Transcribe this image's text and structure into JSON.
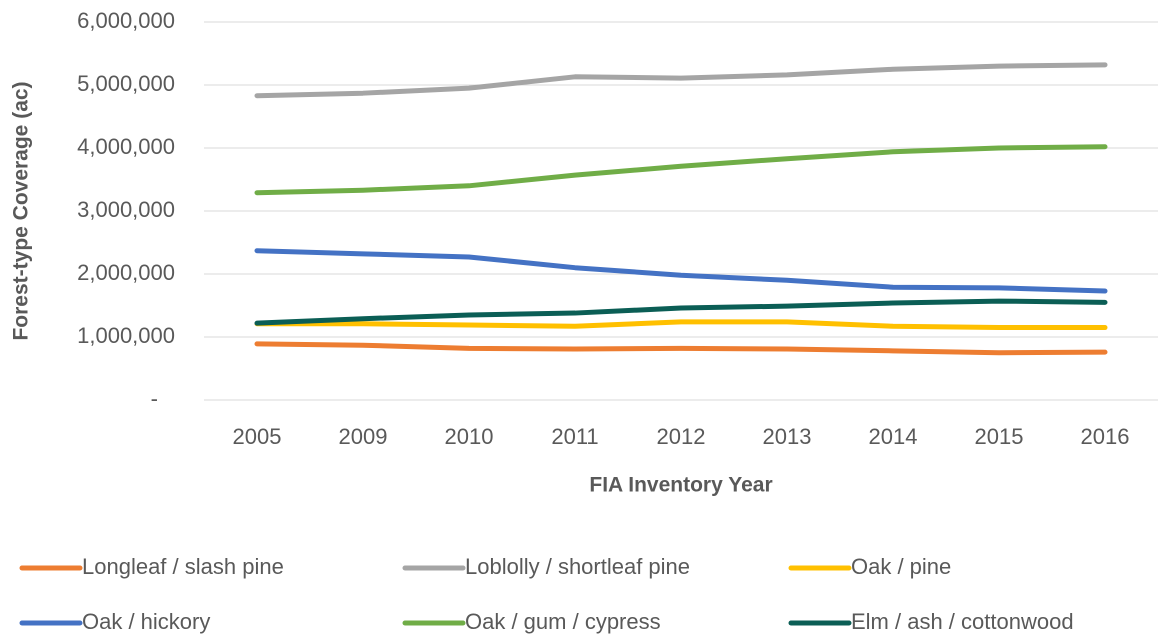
{
  "chart_data": {
    "type": "line",
    "x_label": "FIA Inventory Year",
    "y_label": "Forest-type Coverage (ac)",
    "categories": [
      "2005",
      "2009",
      "2010",
      "2011",
      "2012",
      "2013",
      "2014",
      "2015",
      "2016"
    ],
    "series": [
      {
        "name": "Longleaf / slash pine",
        "color": "#ed7d31",
        "values": [
          890000,
          870000,
          820000,
          810000,
          820000,
          810000,
          780000,
          750000,
          760000
        ]
      },
      {
        "name": "Loblolly / shortleaf pine",
        "color": "#a5a5a5",
        "values": [
          4830000,
          4870000,
          4950000,
          5130000,
          5110000,
          5160000,
          5250000,
          5300000,
          5320000
        ]
      },
      {
        "name": "Oak / pine",
        "color": "#ffc000",
        "values": [
          1210000,
          1210000,
          1190000,
          1170000,
          1240000,
          1240000,
          1170000,
          1150000,
          1150000
        ]
      },
      {
        "name": "Oak / hickory",
        "color": "#4472c4",
        "values": [
          2370000,
          2320000,
          2270000,
          2100000,
          1980000,
          1900000,
          1790000,
          1780000,
          1730000
        ]
      },
      {
        "name": "Oak / gum / cypress",
        "color": "#70ad47",
        "values": [
          3290000,
          3330000,
          3400000,
          3570000,
          3710000,
          3830000,
          3940000,
          4000000,
          4020000
        ]
      },
      {
        "name": "Elm / ash / cottonwood",
        "color": "#0b5e55",
        "values": [
          1220000,
          1290000,
          1350000,
          1380000,
          1460000,
          1490000,
          1540000,
          1570000,
          1550000
        ]
      }
    ],
    "ylim": [
      0,
      6000000
    ],
    "yticks": [
      {
        "value": 0,
        "label": "-"
      },
      {
        "value": 1000000,
        "label": "1,000,000"
      },
      {
        "value": 2000000,
        "label": "2,000,000"
      },
      {
        "value": 3000000,
        "label": "3,000,000"
      },
      {
        "value": 4000000,
        "label": "4,000,000"
      },
      {
        "value": 5000000,
        "label": "5,000,000"
      },
      {
        "value": 6000000,
        "label": "6,000,000"
      }
    ],
    "grid": true,
    "legend": "bottom"
  }
}
